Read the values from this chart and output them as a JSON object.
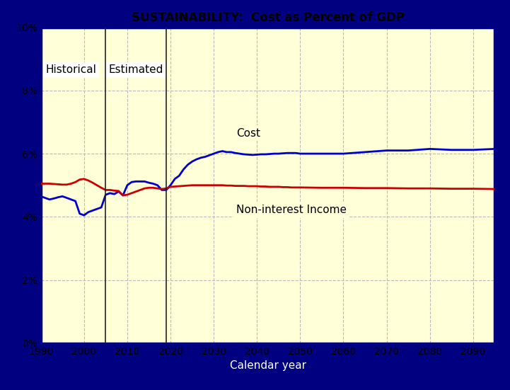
{
  "title": "SUSTAINABILITY:  Cost as Percent of GDP",
  "xlabel": "Calendar year",
  "xlim": [
    1990,
    2095
  ],
  "ylim": [
    0,
    10
  ],
  "yticks": [
    0,
    2,
    4,
    6,
    8,
    10
  ],
  "ytick_labels": [
    "0%",
    "2%",
    "4%",
    "6%",
    "8%",
    "10%"
  ],
  "xticks": [
    1990,
    2000,
    2010,
    2020,
    2030,
    2040,
    2050,
    2060,
    2070,
    2080,
    2090
  ],
  "bg_color": "#FFFFD8",
  "outer_bg_color": "#000080",
  "grid_color": "#BBBBBB",
  "blue_line_color": "#0000CC",
  "red_line_color": "#CC0000",
  "divider_x1": 2005,
  "divider_x2": 2019,
  "label_historical": "Historical",
  "label_estimated": "Estimated",
  "label_cost": "Cost",
  "label_income": "Non-interest Income",
  "cost_years": [
    1990,
    1991,
    1992,
    1993,
    1994,
    1995,
    1996,
    1997,
    1998,
    1999,
    2000,
    2001,
    2002,
    2003,
    2004,
    2005,
    2006,
    2007,
    2008,
    2009,
    2010,
    2011,
    2012,
    2013,
    2014,
    2015,
    2016,
    2017,
    2018,
    2019,
    2020,
    2021,
    2022,
    2023,
    2024,
    2025,
    2026,
    2027,
    2028,
    2029,
    2030,
    2031,
    2032,
    2033,
    2034,
    2035,
    2036,
    2037,
    2038,
    2039,
    2040,
    2041,
    2042,
    2043,
    2044,
    2045,
    2046,
    2047,
    2048,
    2049,
    2050,
    2055,
    2060,
    2065,
    2070,
    2075,
    2080,
    2085,
    2090,
    2095
  ],
  "cost_values": [
    4.65,
    4.6,
    4.55,
    4.58,
    4.62,
    4.65,
    4.6,
    4.55,
    4.5,
    4.1,
    4.05,
    4.15,
    4.2,
    4.25,
    4.3,
    4.7,
    4.75,
    4.72,
    4.8,
    4.68,
    5.0,
    5.1,
    5.12,
    5.12,
    5.12,
    5.08,
    5.05,
    5.0,
    4.85,
    4.85,
    5.0,
    5.2,
    5.3,
    5.5,
    5.65,
    5.75,
    5.82,
    5.87,
    5.9,
    5.95,
    6.0,
    6.05,
    6.08,
    6.05,
    6.05,
    6.02,
    6.0,
    5.98,
    5.97,
    5.96,
    5.97,
    5.98,
    5.98,
    5.99,
    6.0,
    6.0,
    6.01,
    6.02,
    6.02,
    6.02,
    6.0,
    6.0,
    6.0,
    6.05,
    6.1,
    6.1,
    6.15,
    6.12,
    6.12,
    6.15
  ],
  "income_years": [
    1990,
    1991,
    1992,
    1993,
    1994,
    1995,
    1996,
    1997,
    1998,
    1999,
    2000,
    2001,
    2002,
    2003,
    2004,
    2005,
    2006,
    2007,
    2008,
    2009,
    2010,
    2011,
    2012,
    2013,
    2014,
    2015,
    2016,
    2017,
    2018,
    2019,
    2020,
    2021,
    2022,
    2023,
    2024,
    2025,
    2026,
    2027,
    2028,
    2029,
    2030,
    2031,
    2032,
    2033,
    2034,
    2035,
    2036,
    2037,
    2038,
    2039,
    2040,
    2041,
    2042,
    2043,
    2044,
    2045,
    2046,
    2047,
    2048,
    2049,
    2050,
    2055,
    2060,
    2065,
    2070,
    2075,
    2080,
    2085,
    2090,
    2095
  ],
  "income_values": [
    5.05,
    5.05,
    5.05,
    5.04,
    5.03,
    5.02,
    5.02,
    5.05,
    5.1,
    5.18,
    5.2,
    5.15,
    5.08,
    5.0,
    4.92,
    4.85,
    4.85,
    4.83,
    4.82,
    4.68,
    4.7,
    4.75,
    4.8,
    4.85,
    4.9,
    4.92,
    4.92,
    4.9,
    4.88,
    4.9,
    4.95,
    4.96,
    4.97,
    4.98,
    4.99,
    5.0,
    5.0,
    5.0,
    5.0,
    5.0,
    5.0,
    5.0,
    5.0,
    4.99,
    4.99,
    4.98,
    4.98,
    4.98,
    4.97,
    4.97,
    4.97,
    4.96,
    4.96,
    4.95,
    4.95,
    4.95,
    4.94,
    4.94,
    4.93,
    4.93,
    4.93,
    4.92,
    4.92,
    4.91,
    4.91,
    4.9,
    4.9,
    4.89,
    4.89,
    4.88
  ]
}
